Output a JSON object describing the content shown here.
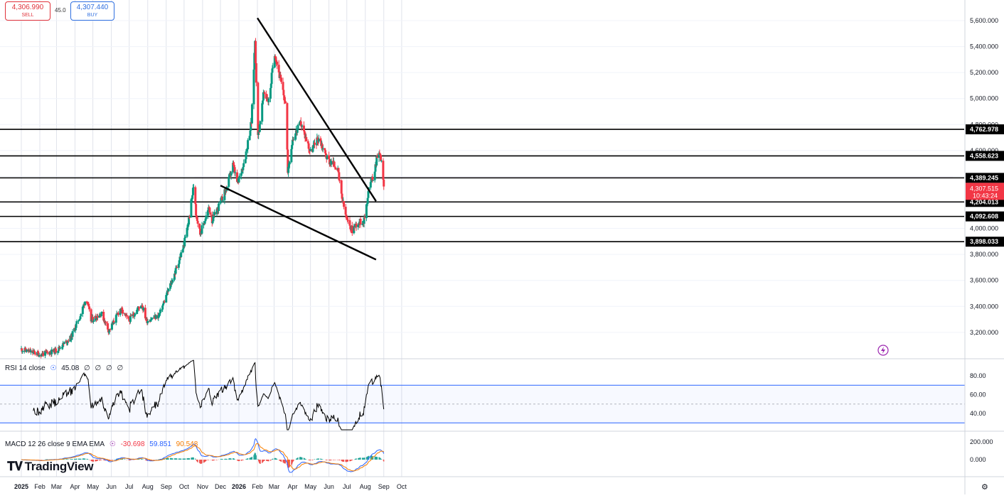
{
  "trade": {
    "sell_price": "4,306.990",
    "sell_label": "SELL",
    "spread": "45.0",
    "buy_price": "4,307.440",
    "buy_label": "BUY"
  },
  "brand": "TradingView",
  "colors": {
    "up": "#089981",
    "down": "#f23645",
    "ema": "#f57c00",
    "macd": "#2962ff",
    "hline": "#000000",
    "purple": "#9c27b0",
    "band": "#2962ff"
  },
  "chart_data": {
    "type": "candlestick",
    "price_axis": {
      "ticks": [
        "3,200.000",
        "3,400.000",
        "3,600.000",
        "3,800.000",
        "4,000.000",
        "4,200.000",
        "4,400.000",
        "4,600.000",
        "4,800.000",
        "5,000.000",
        "5,200.000",
        "5,400.000",
        "5,600.000"
      ],
      "tick_values": [
        3200,
        3400,
        3600,
        3800,
        4000,
        4200,
        4400,
        4600,
        4800,
        5000,
        5200,
        5400,
        5600
      ]
    },
    "time_axis": [
      "2025",
      "Feb",
      "Mar",
      "Apr",
      "May",
      "Jun",
      "Jul",
      "Aug",
      "Sep",
      "Oct",
      "Nov",
      "Dec",
      "2026",
      "Feb",
      "Mar",
      "Apr",
      "May",
      "Jun",
      "Jul",
      "Aug",
      "Sep",
      "Oct"
    ],
    "horizontal_levels": [
      {
        "label": "4,762.978",
        "value": 4762.978
      },
      {
        "label": "4,558.623",
        "value": 4558.623
      },
      {
        "label": "4,389.245",
        "value": 4389.245
      },
      {
        "label": "4,204.013",
        "value": 4204.013
      },
      {
        "label": "4,092.608",
        "value": 4092.608
      },
      {
        "label": "3,898.033",
        "value": 3898.033
      }
    ],
    "current_price": {
      "label": "4,307.515",
      "countdown": "10:43:24",
      "value": 4307.515
    },
    "purple_line_value": 4389.245,
    "trendlines": [
      {
        "from": [
          "2026-02-01",
          5620
        ],
        "to": [
          "2026-08-19",
          4210
        ]
      },
      {
        "from": [
          "2025-12-01",
          4330
        ],
        "to": [
          "2026-08-19",
          3760
        ]
      }
    ],
    "anchors": [
      [
        "2025-01-01",
        3070
      ],
      [
        "2025-02-01",
        3030
      ],
      [
        "2025-03-01",
        3060
      ],
      [
        "2025-03-25",
        3160
      ],
      [
        "2025-04-10",
        3330
      ],
      [
        "2025-04-20",
        3470
      ],
      [
        "2025-04-28",
        3290
      ],
      [
        "2025-05-15",
        3350
      ],
      [
        "2025-05-28",
        3210
      ],
      [
        "2025-06-16",
        3380
      ],
      [
        "2025-06-30",
        3290
      ],
      [
        "2025-07-22",
        3420
      ],
      [
        "2025-07-30",
        3290
      ],
      [
        "2025-08-20",
        3330
      ],
      [
        "2025-09-01",
        3480
      ],
      [
        "2025-09-15",
        3650
      ],
      [
        "2025-09-30",
        3860
      ],
      [
        "2025-10-08",
        4040
      ],
      [
        "2025-10-18",
        4360
      ],
      [
        "2025-10-21",
        4120
      ],
      [
        "2025-10-28",
        3960
      ],
      [
        "2025-11-12",
        4160
      ],
      [
        "2025-11-17",
        4060
      ],
      [
        "2025-12-01",
        4200
      ],
      [
        "2025-12-12",
        4320
      ],
      [
        "2025-12-22",
        4490
      ],
      [
        "2025-12-30",
        4340
      ],
      [
        "2026-01-12",
        4560
      ],
      [
        "2026-01-22",
        4820
      ],
      [
        "2026-01-28",
        5450
      ],
      [
        "2026-02-02",
        4700
      ],
      [
        "2026-02-12",
        5050
      ],
      [
        "2026-02-20",
        4980
      ],
      [
        "2026-03-02",
        5360
      ],
      [
        "2026-03-10",
        5180
      ],
      [
        "2026-03-20",
        4960
      ],
      [
        "2026-03-24",
        4450
      ],
      [
        "2026-04-01",
        4690
      ],
      [
        "2026-04-15",
        4810
      ],
      [
        "2026-05-01",
        4590
      ],
      [
        "2026-05-15",
        4700
      ],
      [
        "2026-05-30",
        4530
      ],
      [
        "2026-06-15",
        4470
      ],
      [
        "2026-06-22",
        4250
      ],
      [
        "2026-07-01",
        4060
      ],
      [
        "2026-07-10",
        3990
      ],
      [
        "2026-07-18",
        4040
      ],
      [
        "2026-07-30",
        4060
      ],
      [
        "2026-08-08",
        4340
      ],
      [
        "2026-08-15",
        4400
      ],
      [
        "2026-08-22",
        4600
      ],
      [
        "2026-08-28",
        4530
      ],
      [
        "2026-09-01",
        4300
      ]
    ],
    "rsi": {
      "label": "RSI 14 close",
      "value": "45.08",
      "empty_values": [
        "∅",
        "∅",
        "∅",
        "∅"
      ],
      "ticks": [
        "40.00",
        "60.00",
        "80.00"
      ],
      "tick_values": [
        40,
        60,
        80
      ],
      "upper_band": 70,
      "lower_band": 30,
      "mid": 50
    },
    "macd": {
      "label": "MACD 12 26 close 9 EMA EMA",
      "hist": "-30.698",
      "macd": "59.851",
      "signal": "90.548",
      "ticks": [
        "0.000",
        "200.000"
      ],
      "tick_values": [
        0,
        200
      ]
    }
  }
}
